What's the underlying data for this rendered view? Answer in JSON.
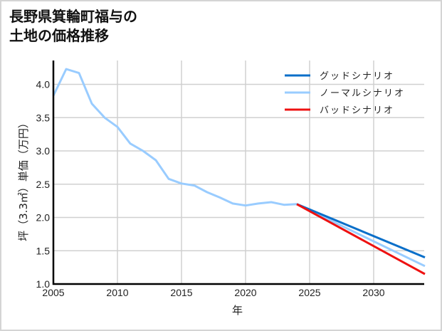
{
  "title_line1": "長野県箕輪町福与の",
  "title_line2": "土地の価格推移",
  "chart_data": {
    "type": "line",
    "title": "長野県箕輪町福与の土地の価格推移",
    "xlabel": "年",
    "ylabel": "坪（3.3㎡）単価（万円）",
    "xlim": [
      2005,
      2034
    ],
    "ylim": [
      1.0,
      4.35
    ],
    "grid": true,
    "legend_position": "upper right",
    "xticks": [
      2005,
      2010,
      2015,
      2020,
      2025,
      2030
    ],
    "yticks": [
      1.0,
      1.5,
      2.0,
      2.5,
      3.0,
      3.5,
      4.0
    ],
    "series": [
      {
        "name": "グッドシナリオ",
        "color": "#0a6fc9",
        "x": [
          2024,
          2034
        ],
        "values": [
          2.2,
          1.4
        ]
      },
      {
        "name": "ノーマルシナリオ",
        "color": "#99ccff",
        "x": [
          2005,
          2006,
          2007,
          2008,
          2009,
          2010,
          2011,
          2012,
          2013,
          2014,
          2015,
          2016,
          2017,
          2018,
          2019,
          2020,
          2021,
          2022,
          2023,
          2024,
          2034
        ],
        "values": [
          3.83,
          4.23,
          4.17,
          3.71,
          3.5,
          3.36,
          3.11,
          3.0,
          2.86,
          2.58,
          2.51,
          2.48,
          2.38,
          2.3,
          2.21,
          2.18,
          2.21,
          2.23,
          2.19,
          2.2,
          1.27
        ]
      },
      {
        "name": "バッドシナリオ",
        "color": "#ee1111",
        "x": [
          2024,
          2034
        ],
        "values": [
          2.2,
          1.15
        ]
      }
    ]
  }
}
